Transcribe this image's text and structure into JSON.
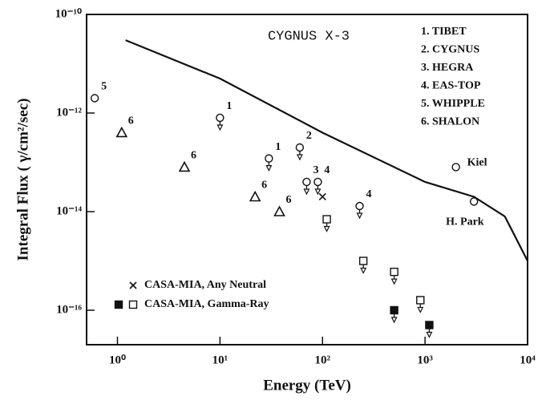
{
  "chart_data": {
    "type": "scatter",
    "title": "CYGNUS X-3",
    "x_label": "Energy (TeV)",
    "y_label": "Integral Flux ( γ/cm²/sec)",
    "xscale": "log",
    "yscale": "log",
    "xlim": [
      0.5,
      10000
    ],
    "ylim": [
      2e-17,
      1e-10
    ],
    "xticks": [
      {
        "value": 1,
        "label": "10⁰"
      },
      {
        "value": 10,
        "label": "10¹"
      },
      {
        "value": 100,
        "label": "10²"
      },
      {
        "value": 1000,
        "label": "10³"
      },
      {
        "value": 10000,
        "label": "10⁴"
      }
    ],
    "yticks": [
      {
        "value": 1e-10,
        "label": "10⁻¹⁰"
      },
      {
        "value": 1e-12,
        "label": "10⁻¹²"
      },
      {
        "value": 1e-14,
        "label": "10⁻¹⁴"
      },
      {
        "value": 1e-16,
        "label": "10⁻¹⁶"
      }
    ],
    "curve": {
      "color": "#111",
      "x": [
        1.2,
        10,
        100,
        1000,
        3000,
        6000,
        10000
      ],
      "values": [
        3e-11,
        5e-12,
        4e-13,
        4e-14,
        2e-14,
        8e-15,
        1e-15
      ]
    },
    "series": [
      {
        "name": "1. TIBET",
        "label": "1",
        "marker": "circle",
        "upper_limit": true,
        "legend": "top-right",
        "x": [
          10,
          30
        ],
        "values": [
          8e-13,
          1.2e-13
        ]
      },
      {
        "name": "2. CYGNUS",
        "label": "2",
        "marker": "circle",
        "upper_limit": true,
        "legend": "top-right",
        "x": [
          60
        ],
        "values": [
          2e-13
        ]
      },
      {
        "name": "3. HEGRA",
        "label": "3",
        "marker": "circle",
        "upper_limit": true,
        "legend": "top-right",
        "x": [
          70
        ],
        "values": [
          4e-14
        ]
      },
      {
        "name": "4. EAS-TOP",
        "label": "4",
        "marker": "circle",
        "upper_limit": true,
        "legend": "top-right",
        "x": [
          90,
          230
        ],
        "values": [
          4e-14,
          1.3e-14
        ]
      },
      {
        "name": "5. WHIPPLE",
        "label": "5",
        "marker": "circle",
        "upper_limit": false,
        "legend": "top-right",
        "x": [
          0.6
        ],
        "values": [
          2e-12
        ]
      },
      {
        "name": "6. SHALON",
        "label": "6",
        "marker": "triangle",
        "upper_limit": false,
        "legend": "top-right",
        "x": [
          1.1,
          4.5,
          22,
          38
        ],
        "values": [
          4e-13,
          8e-14,
          2e-14,
          1e-14
        ]
      },
      {
        "name": "CASA-MIA, Any Neutral",
        "marker": "cross",
        "upper_limit": false,
        "legend": "bottom-left",
        "x": [
          100
        ],
        "values": [
          2e-14
        ]
      },
      {
        "name": "CASA-MIA, Gamma-Ray",
        "marker": "square",
        "upper_limit": true,
        "legend": "bottom-left",
        "x": [
          110,
          250,
          500,
          900,
          500,
          1100
        ],
        "values": [
          7e-15,
          1e-15,
          6e-16,
          1.6e-16,
          1e-16,
          5e-17
        ],
        "filled": [
          false,
          false,
          false,
          false,
          true,
          true
        ]
      },
      {
        "name": "Kiel",
        "marker": "circle",
        "upper_limit": false,
        "legend": "beside",
        "x": [
          2000
        ],
        "values": [
          8e-14
        ]
      },
      {
        "name": "H. Park",
        "marker": "circle",
        "upper_limit": false,
        "legend": "below",
        "x": [
          3000
        ],
        "values": [
          1.6e-14
        ]
      }
    ]
  }
}
